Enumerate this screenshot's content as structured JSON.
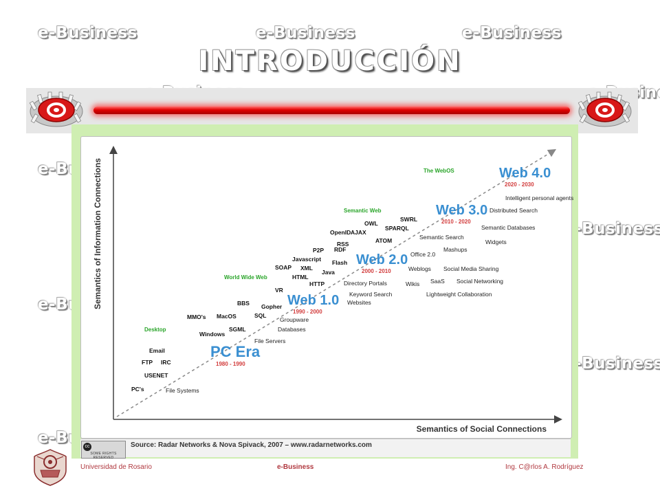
{
  "watermark": {
    "text": "e-Business"
  },
  "slide": {
    "title": "INTRODUCCIÓN"
  },
  "icons": {
    "logo": "at-sign-logo-icon",
    "crest": "university-crest-icon",
    "license": "creative-commons-icon"
  },
  "colors": {
    "accent_red": "#e00000",
    "panel_green": "#cfeeb2",
    "era_blue": "#3a8fd1",
    "date_red": "#d23c3c",
    "label_green": "#2aa52a"
  },
  "chart_data": {
    "type": "diagram",
    "xlabel": "Semantics of Social Connections",
    "ylabel": "Semantics of Information Connections",
    "source": "Source: Radar Networks & Nova Spivack, 2007 – www.radarnetworks.com",
    "license_text": "SOME RIGHTS RESERVED",
    "eras": [
      {
        "name": "PC Era",
        "years": "1980 - 1990"
      },
      {
        "name": "Web 1.0",
        "years": "1990 - 2000"
      },
      {
        "name": "Web 2.0",
        "years": "2000 - 2010"
      },
      {
        "name": "Web 3.0",
        "years": "2010 - 2020"
      },
      {
        "name": "Web 4.0",
        "years": "2020 - 2030"
      }
    ],
    "stage_labels": [
      "Desktop",
      "World Wide Web",
      "Semantic Web",
      "The WebOS"
    ],
    "technologies": [
      "PC's",
      "USENET",
      "FTP",
      "IRC",
      "Email",
      "Windows",
      "SGML",
      "MMO's",
      "MacOS",
      "SQL",
      "BBS",
      "Gopher",
      "VR",
      "SOAP",
      "XML",
      "HTML",
      "Javascript",
      "P2P",
      "Flash",
      "Java",
      "HTTP",
      "RDF",
      "RSS",
      "OpenID",
      "AJAX",
      "OWL",
      "SPARQL",
      "SWRL",
      "ATOM"
    ],
    "applications": [
      "File Systems",
      "File Servers",
      "Groupware",
      "Databases",
      "Websites",
      "Keyword Search",
      "Directory Portals",
      "Wikis",
      "Weblogs",
      "Office 2.0",
      "Semantic Search",
      "Mashups",
      "SaaS",
      "Social Networking",
      "Social Media Sharing",
      "Lightweight Collaboration",
      "Widgets",
      "Semantic Databases",
      "Distributed Search",
      "Intelligent personal agents"
    ]
  },
  "footer": {
    "university": "Universidad de Rosario",
    "course": "e-Business",
    "author": "Ing. C@rlos A. Rodríguez"
  }
}
